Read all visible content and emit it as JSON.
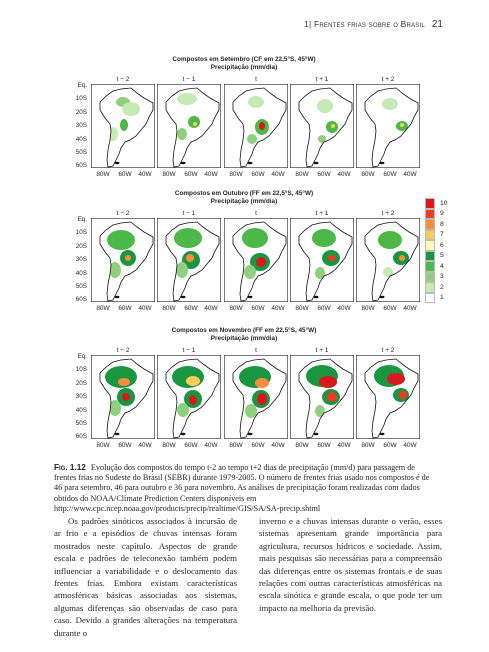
{
  "header": {
    "chapter": "1| Frentes frias sobre o Brasil",
    "page_number": "21"
  },
  "figure": {
    "panels": [
      {
        "title": "Compostos em Setembro (CF em 22,5°S, 45°W)",
        "subtitle": "Precipitação (mm/dia)"
      },
      {
        "title": "Compostos em Outubro (FF em 22,5°S, 45°W)",
        "subtitle": "Precipitação (mm/dia)"
      },
      {
        "title": "Compostos em Novembro (FF em 22,5°S, 45°W)",
        "subtitle": "Precipitação (mm/dia)"
      }
    ],
    "lags": [
      "t − 2",
      "t − 1",
      "t",
      "t + 1",
      "t + 2"
    ],
    "y_ticks": [
      "Eq.",
      "10S",
      "20S",
      "30S",
      "40S",
      "50S",
      "60S"
    ],
    "x_ticks": [
      "80W",
      "60W",
      "40W"
    ],
    "legend": {
      "labels": [
        "10",
        "9",
        "8",
        "7",
        "6",
        "5",
        "4",
        "3",
        "2",
        "1"
      ],
      "colors": [
        "#d7191c",
        "#f03b20",
        "#fd8d3c",
        "#fecc5c",
        "#ffffb2",
        "#1a9641",
        "#4cb848",
        "#8fd07e",
        "#c7e9b4",
        "#ffffff"
      ]
    }
  },
  "caption": {
    "label": "Fig. 1.12",
    "text": "Evolução dos compostos do tempo t-2 ao tempo t+2 dias de precipitação (mm/d) para passagem de frentes frias no Sudeste do Brasil (SEBR) durante 1979-2005. O número de frentes frias usado nos compostos é de 46 para setembro, 46 para outubro e 36 para novembro. As análises de precipitação foram realizadas com dados obtidos do NOAA/Climate Prediction Centers disponíveis em http://www.cpc.ncep.noaa.gov/products/precip/realtime/GIS/SA/SA-precip.shtml"
  },
  "body": {
    "left": "Os padrões sinóticos associados à incursão de ar frio e a episódios de chuvas intensas foram mostrados neste capítulo. Aspectos de grande escala e padrões de teleconexão também podem influenciar a variabilidade e o deslocamento das frentes frias. Embora existam características atmosféricas básicas associadas aos sistemas, algumas diferenças são observadas de caso para caso. Devido a grandes alterações na temperatura durante o",
    "right": "inverno e a chuvas intensas durante o verão, esses sistemas apresentam grande importância para agricultura, recursos hídricos e sociedade. Assim, mais pesquisas são necessárias para a compreensão das diferenças entre os sistemas frontais e de suas relações com outras características atmosféricas na escala sinótica e grande escala, o que pode ter um impacto na melhoria da previsão."
  }
}
